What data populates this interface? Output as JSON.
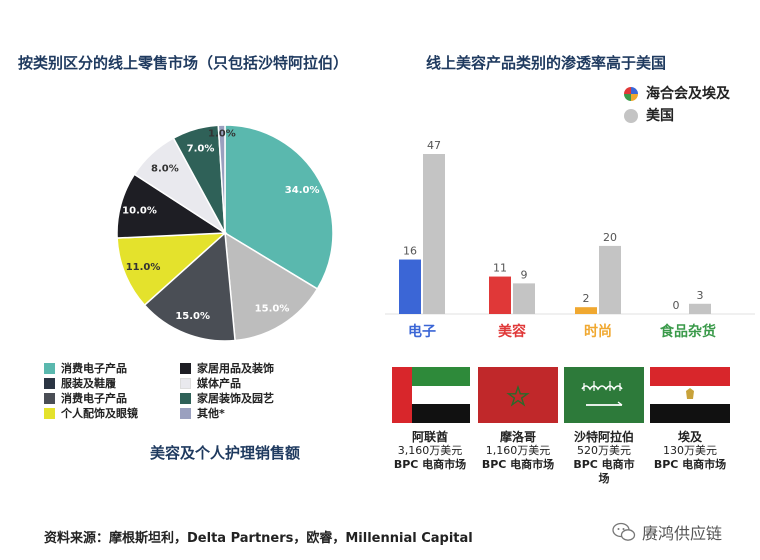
{
  "left": {
    "title": "按类别区分的线上零售市场（只包括沙特阿拉伯）",
    "caption": "美容及个人护理销售额",
    "legend": [
      {
        "label": "消费电子产品",
        "color": "#5ab8ae"
      },
      {
        "label": "家居用品及装饰",
        "color": "#1e1e24"
      },
      {
        "label": "服装及鞋履",
        "color": "#2b3543"
      },
      {
        "label": "媒体产品",
        "color": "#e9e9ee"
      },
      {
        "label": "消费电子产品",
        "color": "#4a4e55"
      },
      {
        "label": "家居装饰及园艺",
        "color": "#2f6158"
      },
      {
        "label": "个人配饰及眼镜",
        "color": "#e4e22c"
      },
      {
        "label": "其他*",
        "color": "#9aa0bf"
      }
    ]
  },
  "right": {
    "title": "线上美容产品类别的渗透率高于美国",
    "legend": [
      {
        "label": "海合会及埃及",
        "icon": "multicolor-pie-icon"
      },
      {
        "label": "美国",
        "color": "#c4c4c4"
      }
    ],
    "categories": [
      {
        "label": "电子",
        "color": "#3b66d6"
      },
      {
        "label": "美容",
        "color": "#e03838"
      },
      {
        "label": "时尚",
        "color": "#f0a830"
      },
      {
        "label": "食品杂货",
        "color": "#3a9a4a"
      }
    ],
    "flags": [
      {
        "name": "阿联酋",
        "value": "3,160万美元",
        "market": "BPC 电商市场",
        "icon": "uae-flag-icon"
      },
      {
        "name": "摩洛哥",
        "value": "1,160万美元",
        "market": "BPC 电商市场",
        "icon": "morocco-flag-icon"
      },
      {
        "name": "沙特阿拉伯",
        "value": "520万美元",
        "market": "BPC 电商市",
        "market2": "场",
        "icon": "saudi-flag-icon"
      },
      {
        "name": "埃及",
        "value": "130万美元",
        "market": "BPC 电商市场",
        "icon": "egypt-flag-icon"
      }
    ]
  },
  "source": "资料来源：摩根斯坦利，Delta Partners，欧睿，Millennial Capital",
  "watermark": {
    "icon": "wechat-icon",
    "text": "赓鸿供应链"
  },
  "chart_data": [
    {
      "type": "pie",
      "title": "按类别区分的线上零售市场（只包括沙特阿拉伯）",
      "slices": [
        {
          "value": 34.0,
          "label": "34.0%",
          "color": "#5ab8ae"
        },
        {
          "value": 15.0,
          "label": "15.0%",
          "color": "#bdbdbd"
        },
        {
          "value": 15.0,
          "label": "15.0%",
          "color": "#4a4e55"
        },
        {
          "value": 11.0,
          "label": "11.0%",
          "color": "#e4e22c"
        },
        {
          "value": 10.0,
          "label": "10.0%",
          "color": "#1e1e24"
        },
        {
          "value": 8.0,
          "label": "8.0%",
          "color": "#e9e9ee"
        },
        {
          "value": 7.0,
          "label": "7.0%",
          "color": "#2f6158"
        },
        {
          "value": 1.0,
          "label": "1.0%",
          "color": "#9aa0bf"
        }
      ]
    },
    {
      "type": "bar",
      "title": "线上美容产品类别的渗透率高于美国",
      "categories": [
        "电子",
        "美容",
        "时尚",
        "食品杂货"
      ],
      "series": [
        {
          "name": "海合会及埃及",
          "values": [
            16,
            11,
            2,
            0
          ],
          "colors": [
            "#3b66d6",
            "#e03838",
            "#f0a830",
            "#3a9a4a"
          ]
        },
        {
          "name": "美国",
          "values": [
            47,
            9,
            20,
            3
          ],
          "color": "#c4c4c4"
        }
      ],
      "ylim": [
        0,
        47
      ]
    }
  ]
}
